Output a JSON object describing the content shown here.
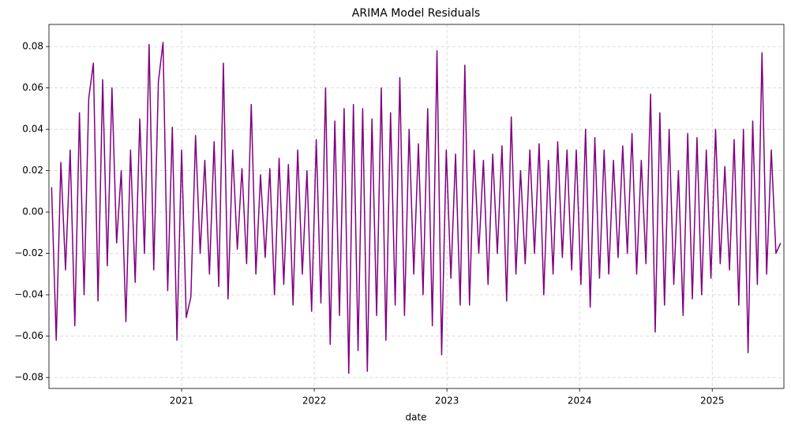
{
  "chart_data": {
    "type": "line",
    "title": "ARIMA Model Residuals",
    "x_label": "date",
    "x": [
      2020.02,
      2020.055,
      2020.09,
      2020.125,
      2020.16,
      2020.195,
      2020.23,
      2020.265,
      2020.3,
      2020.335,
      2020.37,
      2020.405,
      2020.44,
      2020.475,
      2020.51,
      2020.545,
      2020.58,
      2020.615,
      2020.65,
      2020.685,
      2020.72,
      2020.755,
      2020.79,
      2020.825,
      2020.86,
      2020.895,
      2020.93,
      2020.965,
      2021.0,
      2021.035,
      2021.07,
      2021.105,
      2021.14,
      2021.175,
      2021.21,
      2021.245,
      2021.28,
      2021.315,
      2021.35,
      2021.385,
      2021.42,
      2021.455,
      2021.49,
      2021.525,
      2021.56,
      2021.595,
      2021.63,
      2021.665,
      2021.7,
      2021.735,
      2021.77,
      2021.805,
      2021.84,
      2021.875,
      2021.91,
      2021.945,
      2021.98,
      2022.015,
      2022.05,
      2022.085,
      2022.12,
      2022.155,
      2022.19,
      2022.225,
      2022.26,
      2022.295,
      2022.33,
      2022.365,
      2022.4,
      2022.435,
      2022.47,
      2022.505,
      2022.54,
      2022.575,
      2022.61,
      2022.645,
      2022.68,
      2022.715,
      2022.75,
      2022.785,
      2022.82,
      2022.855,
      2022.89,
      2022.925,
      2022.96,
      2022.995,
      2023.03,
      2023.065,
      2023.1,
      2023.135,
      2023.17,
      2023.205,
      2023.24,
      2023.275,
      2023.31,
      2023.345,
      2023.38,
      2023.415,
      2023.45,
      2023.485,
      2023.52,
      2023.555,
      2023.59,
      2023.625,
      2023.66,
      2023.695,
      2023.73,
      2023.765,
      2023.8,
      2023.835,
      2023.87,
      2023.905,
      2023.94,
      2023.975,
      2024.01,
      2024.045,
      2024.08,
      2024.115,
      2024.15,
      2024.185,
      2024.22,
      2024.255,
      2024.29,
      2024.325,
      2024.36,
      2024.395,
      2024.43,
      2024.465,
      2024.5,
      2024.535,
      2024.57,
      2024.605,
      2024.64,
      2024.675,
      2024.71,
      2024.745,
      2024.78,
      2024.815,
      2024.85,
      2024.885,
      2024.92,
      2024.955,
      2024.99,
      2025.025,
      2025.06,
      2025.095,
      2025.13,
      2025.165,
      2025.2,
      2025.235,
      2025.27,
      2025.305,
      2025.34,
      2025.375,
      2025.41,
      2025.445,
      2025.48,
      2025.515
    ],
    "series": [
      {
        "color": "#800080",
        "values": [
          0.012,
          -0.062,
          0.024,
          -0.028,
          0.03,
          -0.055,
          0.048,
          -0.04,
          0.055,
          0.072,
          -0.043,
          0.064,
          -0.026,
          0.06,
          -0.015,
          0.02,
          -0.053,
          0.03,
          -0.034,
          0.045,
          -0.02,
          0.081,
          -0.028,
          0.063,
          0.082,
          -0.038,
          0.041,
          -0.062,
          0.03,
          -0.051,
          -0.041,
          0.037,
          -0.02,
          0.025,
          -0.03,
          0.034,
          -0.036,
          0.072,
          -0.042,
          0.03,
          -0.018,
          0.021,
          -0.025,
          0.052,
          -0.03,
          0.018,
          -0.022,
          0.021,
          -0.04,
          0.026,
          -0.035,
          0.023,
          -0.045,
          0.03,
          -0.03,
          0.02,
          -0.048,
          0.035,
          -0.044,
          0.06,
          -0.064,
          0.044,
          -0.05,
          0.05,
          -0.078,
          0.052,
          -0.067,
          0.05,
          -0.077,
          0.045,
          -0.05,
          0.06,
          -0.062,
          0.048,
          -0.045,
          0.065,
          -0.05,
          0.04,
          -0.03,
          0.033,
          -0.04,
          0.05,
          -0.055,
          0.078,
          -0.069,
          0.03,
          -0.032,
          0.028,
          -0.045,
          0.071,
          -0.045,
          0.03,
          -0.02,
          0.025,
          -0.035,
          0.028,
          -0.02,
          0.032,
          -0.043,
          0.046,
          -0.03,
          0.02,
          -0.025,
          0.03,
          -0.02,
          0.033,
          -0.04,
          0.025,
          -0.03,
          0.034,
          -0.022,
          0.03,
          -0.028,
          0.03,
          -0.035,
          0.04,
          -0.046,
          0.036,
          -0.032,
          0.03,
          -0.03,
          0.025,
          -0.022,
          0.032,
          -0.02,
          0.038,
          -0.03,
          0.025,
          -0.025,
          0.057,
          -0.058,
          0.048,
          -0.045,
          0.04,
          -0.035,
          0.02,
          -0.05,
          0.038,
          -0.042,
          0.036,
          -0.04,
          0.03,
          -0.032,
          0.04,
          -0.025,
          0.022,
          -0.028,
          0.035,
          -0.045,
          0.04,
          -0.068,
          0.044,
          -0.035,
          0.077,
          -0.03,
          0.03,
          -0.02,
          -0.015
        ]
      }
    ],
    "xlim": [
      2020.0,
      2025.54
    ],
    "xticks": [
      2021,
      2022,
      2023,
      2024,
      2025
    ],
    "ylim": [
      -0.0853,
      0.0907
    ],
    "yticks": [
      {
        "value": -0.08,
        "label": "−0.08"
      },
      {
        "value": -0.06,
        "label": "−0.06"
      },
      {
        "value": -0.04,
        "label": "−0.04"
      },
      {
        "value": -0.02,
        "label": "−0.02"
      },
      {
        "value": 0,
        "label": "0.00"
      },
      0.02,
      0.04,
      0.06,
      0.08
    ],
    "grid": true
  }
}
